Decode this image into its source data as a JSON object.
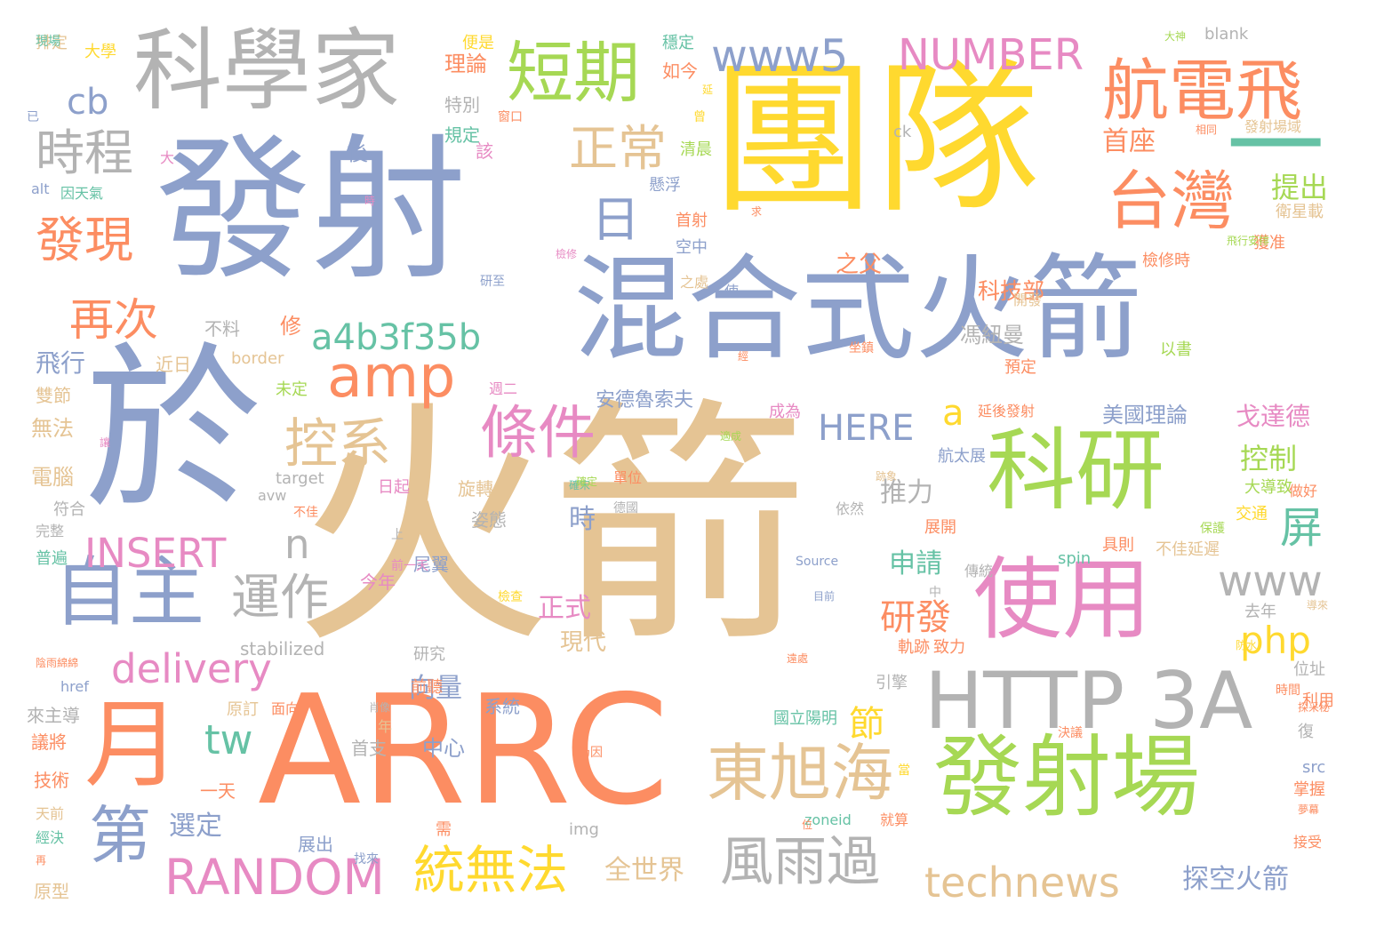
{
  "palette": {
    "orange": "#fc8d62",
    "blue": "#8da0cb",
    "pink": "#e78ac3",
    "green": "#a6d854",
    "yellow": "#ffd92f",
    "tan": "#e5c494",
    "gray": "#b3b3b3",
    "teal": "#66c2a5"
  },
  "words": [
    {
      "text": "火箭",
      "color": "tan"
    },
    {
      "text": "團隊",
      "color": "yellow"
    },
    {
      "text": "發射",
      "color": "blue"
    },
    {
      "text": "於",
      "color": "blue"
    },
    {
      "text": "ARRC",
      "color": "orange"
    },
    {
      "text": "混合式火箭",
      "color": "blue"
    },
    {
      "text": "科學家",
      "color": "gray"
    },
    {
      "text": "科研",
      "color": "green"
    },
    {
      "text": "發射場",
      "color": "green"
    },
    {
      "text": "使用",
      "color": "pink"
    },
    {
      "text": "月",
      "color": "orange"
    },
    {
      "text": "HTTP 3A",
      "color": "gray"
    },
    {
      "text": "一",
      "color": "teal"
    },
    {
      "text": "航電飛",
      "color": "orange"
    },
    {
      "text": "短期",
      "color": "green"
    },
    {
      "text": "自主",
      "color": "blue"
    },
    {
      "text": "台灣",
      "color": "orange"
    },
    {
      "text": "東旭海",
      "color": "tan"
    },
    {
      "text": "www5",
      "color": "blue"
    },
    {
      "text": "NUMBER",
      "color": "pink"
    },
    {
      "text": "amp",
      "color": "orange"
    },
    {
      "text": "條件",
      "color": "pink"
    },
    {
      "text": "控系",
      "color": "tan"
    },
    {
      "text": "風雨過",
      "color": "gray"
    },
    {
      "text": "統無法",
      "color": "yellow"
    },
    {
      "text": "RANDOM",
      "color": "pink"
    },
    {
      "text": "第",
      "color": "blue"
    },
    {
      "text": "technews",
      "color": "tan"
    },
    {
      "text": "a4b3f35b",
      "color": "teal"
    },
    {
      "text": "正常",
      "color": "tan"
    },
    {
      "text": "時程",
      "color": "gray"
    },
    {
      "text": "發現",
      "color": "orange"
    },
    {
      "text": "運作",
      "color": "gray"
    },
    {
      "text": "日",
      "color": "blue"
    },
    {
      "text": "INSERT",
      "color": "pink"
    },
    {
      "text": "delivery",
      "color": "pink"
    },
    {
      "text": "再次",
      "color": "orange"
    },
    {
      "text": "屏",
      "color": "teal"
    },
    {
      "text": "www",
      "color": "gray"
    },
    {
      "text": "cb",
      "color": "blue"
    },
    {
      "text": "tw",
      "color": "teal"
    },
    {
      "text": "php",
      "color": "yellow"
    },
    {
      "text": "HERE",
      "color": "blue"
    },
    {
      "text": "研發",
      "color": "orange"
    },
    {
      "text": "a",
      "color": "yellow"
    },
    {
      "text": "n",
      "color": "gray"
    },
    {
      "text": "節",
      "color": "yellow"
    },
    {
      "text": "控制",
      "color": "green"
    },
    {
      "text": "提出",
      "color": "green"
    },
    {
      "text": "首座",
      "color": "orange"
    },
    {
      "text": "探空火箭",
      "color": "blue"
    },
    {
      "text": "全世界",
      "color": "tan"
    },
    {
      "text": "推力",
      "color": "gray"
    },
    {
      "text": "申請",
      "color": "teal"
    },
    {
      "text": "正式",
      "color": "pink"
    },
    {
      "text": "向量",
      "color": "blue"
    },
    {
      "text": "選定",
      "color": "blue"
    },
    {
      "text": "科技部",
      "color": "orange"
    },
    {
      "text": "飛行",
      "color": "blue"
    },
    {
      "text": "戈達德",
      "color": "pink"
    },
    {
      "text": "之父",
      "color": "orange"
    },
    {
      "text": "馮紐曼",
      "color": "gray"
    },
    {
      "text": "美國理論",
      "color": "blue"
    },
    {
      "text": "安德魯索夫",
      "color": "blue"
    },
    {
      "text": "現代",
      "color": "tan"
    },
    {
      "text": "時",
      "color": "blue"
    },
    {
      "text": "理論",
      "color": "orange"
    },
    {
      "text": "特別",
      "color": "gray"
    },
    {
      "text": "規定",
      "color": "teal"
    },
    {
      "text": "清晨",
      "color": "green"
    },
    {
      "text": "懸浮",
      "color": "blue"
    },
    {
      "text": "首射",
      "color": "orange"
    },
    {
      "text": "空中",
      "color": "blue"
    },
    {
      "text": "如今",
      "color": "orange"
    },
    {
      "text": "穩定",
      "color": "teal"
    },
    {
      "text": "便是",
      "color": "yellow"
    },
    {
      "text": "排定",
      "color": "tan"
    },
    {
      "text": "大學",
      "color": "yellow"
    },
    {
      "text": "因天氣",
      "color": "teal"
    },
    {
      "text": "alt",
      "color": "blue"
    },
    {
      "text": "後",
      "color": "blue"
    },
    {
      "text": "該",
      "color": "pink"
    },
    {
      "text": "修",
      "color": "orange"
    },
    {
      "text": "不料",
      "color": "gray"
    },
    {
      "text": "近日",
      "color": "tan"
    },
    {
      "text": "border",
      "color": "tan"
    },
    {
      "text": "週二",
      "color": "pink"
    },
    {
      "text": "未定",
      "color": "green"
    },
    {
      "text": "雙節",
      "color": "tan"
    },
    {
      "text": "無法",
      "color": "tan"
    },
    {
      "text": "電腦",
      "color": "tan"
    },
    {
      "text": "符合",
      "color": "gray"
    },
    {
      "text": "完整",
      "color": "gray"
    },
    {
      "text": "普遍",
      "color": "teal"
    },
    {
      "text": "target",
      "color": "gray"
    },
    {
      "text": "avw",
      "color": "gray"
    },
    {
      "text": "日起",
      "color": "pink"
    },
    {
      "text": "旋轉",
      "color": "tan"
    },
    {
      "text": "姿態",
      "color": "gray"
    },
    {
      "text": "尾翼",
      "color": "blue"
    },
    {
      "text": "今年",
      "color": "pink"
    },
    {
      "text": "stabilized",
      "color": "gray"
    },
    {
      "text": "研究",
      "color": "gray"
    },
    {
      "text": "前聽",
      "color": "orange"
    },
    {
      "text": "href",
      "color": "blue"
    },
    {
      "text": "原訂",
      "color": "tan"
    },
    {
      "text": "面向",
      "color": "orange"
    },
    {
      "text": "系統",
      "color": "blue"
    },
    {
      "text": "來主導",
      "color": "gray"
    },
    {
      "text": "議將",
      "color": "orange"
    },
    {
      "text": "首支",
      "color": "gray"
    },
    {
      "text": "中心",
      "color": "blue"
    },
    {
      "text": "年",
      "color": "tan"
    },
    {
      "text": "技術",
      "color": "orange"
    },
    {
      "text": "一天",
      "color": "orange"
    },
    {
      "text": "天前",
      "color": "tan"
    },
    {
      "text": "經決",
      "color": "teal"
    },
    {
      "text": "原型",
      "color": "tan"
    },
    {
      "text": "展出",
      "color": "blue"
    },
    {
      "text": "需",
      "color": "orange"
    },
    {
      "text": "img",
      "color": "gray"
    },
    {
      "text": "zoneid",
      "color": "teal"
    },
    {
      "text": "就算",
      "color": "orange"
    },
    {
      "text": "國立陽明",
      "color": "teal"
    },
    {
      "text": "航太展",
      "color": "blue"
    },
    {
      "text": "延後發射",
      "color": "orange"
    },
    {
      "text": "單位",
      "color": "orange"
    },
    {
      "text": "成為",
      "color": "pink"
    },
    {
      "text": "依然",
      "color": "gray"
    },
    {
      "text": "軌跡",
      "color": "orange"
    },
    {
      "text": "致力",
      "color": "orange"
    },
    {
      "text": "引擎",
      "color": "gray"
    },
    {
      "text": "傳統",
      "color": "gray"
    },
    {
      "text": "展開",
      "color": "orange"
    },
    {
      "text": "具則",
      "color": "orange"
    },
    {
      "text": "不佳延遲",
      "color": "tan"
    },
    {
      "text": "spin",
      "color": "teal"
    },
    {
      "text": "去年",
      "color": "gray"
    },
    {
      "text": "位址",
      "color": "gray"
    },
    {
      "text": "利用",
      "color": "orange"
    },
    {
      "text": "復",
      "color": "gray"
    },
    {
      "text": "src",
      "color": "blue"
    },
    {
      "text": "掌握",
      "color": "orange"
    },
    {
      "text": "接受",
      "color": "orange"
    },
    {
      "text": "交通",
      "color": "yellow"
    },
    {
      "text": "預定",
      "color": "orange"
    },
    {
      "text": "以書",
      "color": "green"
    },
    {
      "text": "檢修時",
      "color": "orange"
    },
    {
      "text": "獲准",
      "color": "orange"
    },
    {
      "text": "衛星載",
      "color": "tan"
    },
    {
      "text": "發射場域",
      "color": "tan"
    },
    {
      "text": "相同",
      "color": "orange"
    },
    {
      "text": "ck",
      "color": "gray"
    },
    {
      "text": "blank",
      "color": "gray"
    },
    {
      "text": "大神",
      "color": "green"
    },
    {
      "text": "大導致",
      "color": "green"
    },
    {
      "text": "做好",
      "color": "orange"
    },
    {
      "text": "坐鎮",
      "color": "orange"
    },
    {
      "text": "研至",
      "color": "blue"
    },
    {
      "text": "之處",
      "color": "tan"
    },
    {
      "text": "開發",
      "color": "tan"
    },
    {
      "text": "使",
      "color": "blue"
    },
    {
      "text": "已",
      "color": "blue"
    },
    {
      "text": "大",
      "color": "pink"
    },
    {
      "text": "曾",
      "color": "yellow"
    },
    {
      "text": "窗口",
      "color": "orange"
    },
    {
      "text": "延",
      "color": "yellow"
    },
    {
      "text": "Source",
      "color": "blue"
    },
    {
      "text": "上",
      "color": "gray"
    },
    {
      "text": "德國",
      "color": "gray"
    },
    {
      "text": "檢查",
      "color": "yellow"
    },
    {
      "text": "仍因",
      "color": "orange"
    },
    {
      "text": "當",
      "color": "yellow"
    },
    {
      "text": "決議",
      "color": "orange"
    },
    {
      "text": "肖像",
      "color": "gray"
    },
    {
      "text": "確宋",
      "color": "teal"
    },
    {
      "text": "陰雨綿綿",
      "color": "orange"
    },
    {
      "text": "讓",
      "color": "pink"
    },
    {
      "text": "不佳",
      "color": "orange"
    },
    {
      "text": "前一天",
      "color": "pink"
    },
    {
      "text": "中",
      "color": "gray"
    },
    {
      "text": "保護",
      "color": "green"
    },
    {
      "text": "防水",
      "color": "yellow"
    },
    {
      "text": "時間",
      "color": "orange"
    },
    {
      "text": "找來",
      "color": "blue"
    },
    {
      "text": "再",
      "color": "orange"
    },
    {
      "text": "位",
      "color": "orange"
    },
    {
      "text": "目前",
      "color": "blue"
    },
    {
      "text": "檢修",
      "color": "pink"
    },
    {
      "text": "時",
      "color": "pink"
    },
    {
      "text": "求",
      "color": "orange"
    },
    {
      "text": "飛行安排",
      "color": "green"
    },
    {
      "text": "經",
      "color": "orange"
    },
    {
      "text": "適成",
      "color": "green"
    },
    {
      "text": "確定",
      "color": "green"
    },
    {
      "text": "跡象",
      "color": "tan"
    },
    {
      "text": "遠處",
      "color": "orange"
    },
    {
      "text": "探采秘",
      "color": "orange"
    },
    {
      "text": "導來",
      "color": "tan"
    },
    {
      "text": "夢幕",
      "color": "orange"
    },
    {
      "text": "現場",
      "color": "teal"
    }
  ]
}
